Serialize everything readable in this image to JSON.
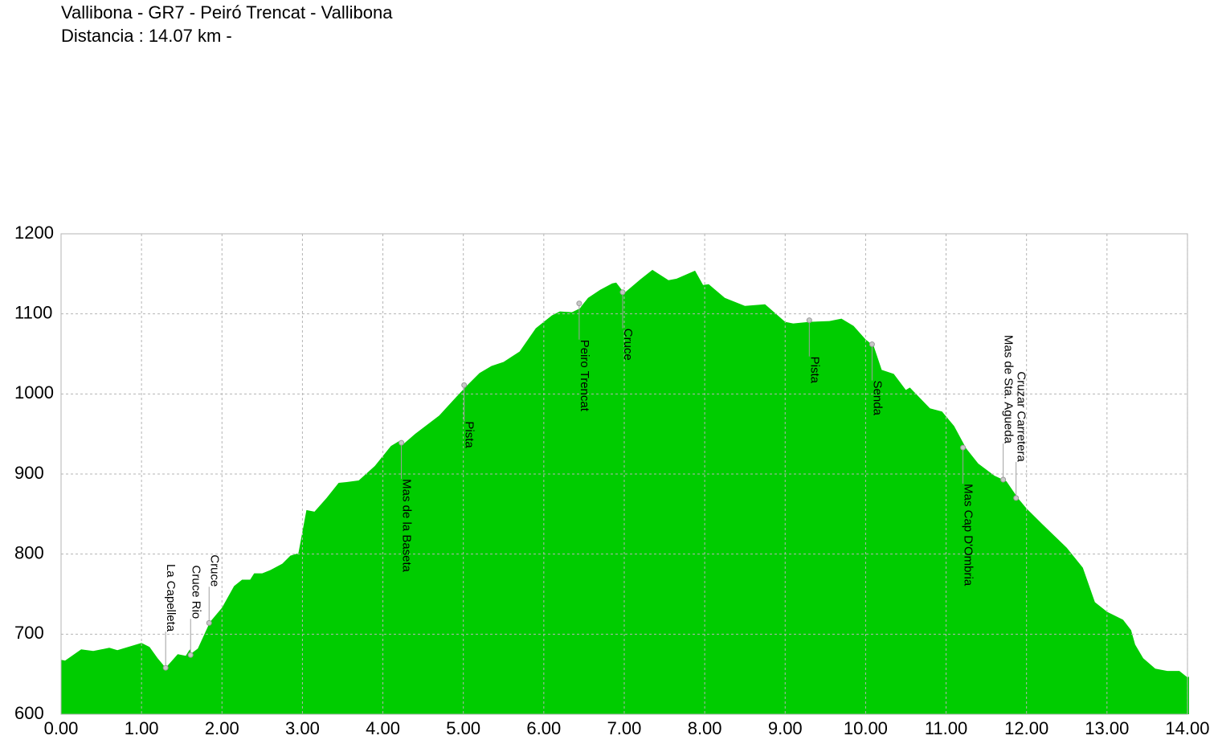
{
  "chart_data": {
    "type": "area",
    "title": "Vallibona - GR7 - Peiró Trencat - Vallibona",
    "subtitle": "Distancia : 14.07 km -",
    "color": "#00cc00",
    "grid": true,
    "x": [
      0.0,
      0.05,
      0.25,
      0.4,
      0.6,
      0.7,
      1.0,
      1.1,
      1.2,
      1.3,
      1.45,
      1.55,
      1.6,
      1.62,
      1.7,
      1.85,
      2.0,
      2.15,
      2.25,
      2.35,
      2.4,
      2.5,
      2.6,
      2.75,
      2.85,
      2.95,
      3.05,
      3.15,
      3.3,
      3.45,
      3.55,
      3.7,
      3.9,
      4.1,
      4.2,
      4.25,
      4.4,
      4.7,
      4.9,
      5.05,
      5.2,
      5.35,
      5.5,
      5.7,
      5.9,
      6.1,
      6.2,
      6.35,
      6.45,
      6.47,
      6.55,
      6.7,
      6.85,
      6.9,
      7.0,
      7.2,
      7.35,
      7.55,
      7.65,
      7.88,
      7.98,
      8.05,
      8.25,
      8.5,
      8.75,
      9.0,
      9.1,
      9.3,
      9.55,
      9.7,
      9.85,
      10.0,
      10.1,
      10.2,
      10.35,
      10.5,
      10.55,
      10.8,
      10.95,
      11.1,
      11.25,
      11.4,
      11.6,
      11.75,
      11.9,
      12.0,
      12.2,
      12.5,
      12.7,
      12.85,
      13.0,
      13.2,
      13.3,
      13.35,
      13.45,
      13.6,
      13.75,
      13.9,
      14.0,
      14.02
    ],
    "values": [
      668,
      667,
      681,
      679,
      683,
      680,
      689,
      684,
      670,
      658,
      675,
      673,
      681,
      676,
      682,
      715,
      733,
      760,
      768,
      768,
      776,
      776,
      780,
      788,
      798,
      801,
      855,
      853,
      870,
      889,
      890,
      892,
      910,
      935,
      941,
      937,
      950,
      973,
      995,
      1011,
      1026,
      1035,
      1040,
      1053,
      1082,
      1098,
      1103,
      1102,
      1107,
      1110,
      1120,
      1130,
      1138,
      1139,
      1126,
      1143,
      1155,
      1142,
      1144,
      1154,
      1136,
      1137,
      1120,
      1110,
      1112,
      1090,
      1088,
      1090,
      1091,
      1094,
      1085,
      1068,
      1060,
      1030,
      1025,
      1005,
      1008,
      982,
      978,
      960,
      932,
      913,
      898,
      891,
      869,
      857,
      837,
      808,
      783,
      740,
      728,
      718,
      705,
      687,
      670,
      657,
      654,
      654,
      646,
      647
    ],
    "xlim": [
      0,
      14.02
    ],
    "ylim": [
      600,
      1200
    ],
    "xticks": [
      {
        "value": 0,
        "label": "0.00"
      },
      {
        "value": 1,
        "label": "1.00"
      },
      {
        "value": 2,
        "label": "2.00"
      },
      {
        "value": 3,
        "label": "3.00"
      },
      {
        "value": 4,
        "label": "4.00"
      },
      {
        "value": 5,
        "label": "5.00"
      },
      {
        "value": 6,
        "label": "6.00"
      },
      {
        "value": 7,
        "label": "7.00"
      },
      {
        "value": 8,
        "label": "8.00"
      },
      {
        "value": 9,
        "label": "9.00"
      },
      {
        "value": 10,
        "label": "10.00"
      },
      {
        "value": 11,
        "label": "11.00"
      },
      {
        "value": 12,
        "label": "12.00"
      },
      {
        "value": 13,
        "label": "13.00"
      },
      {
        "value": 14,
        "label": "14.00"
      }
    ],
    "yticks": [
      600,
      700,
      800,
      900,
      1000,
      1100,
      1200
    ],
    "waypoints": [
      {
        "label": "La Capelleta",
        "x": 1.3,
        "y": 658,
        "position": "above"
      },
      {
        "label": "Cruce Rio",
        "x": 1.61,
        "y": 674,
        "position": "above"
      },
      {
        "label": "Cruce",
        "x": 1.84,
        "y": 714,
        "position": "above"
      },
      {
        "label": "Mas de la Baseta",
        "x": 4.23,
        "y": 939,
        "position": "below"
      },
      {
        "label": "Pista",
        "x": 5.01,
        "y": 1011,
        "position": "below"
      },
      {
        "label": "Peiro Trencat",
        "x": 6.44,
        "y": 1113,
        "position": "below"
      },
      {
        "label": "Cruce",
        "x": 6.98,
        "y": 1127,
        "position": "below"
      },
      {
        "label": "Pista",
        "x": 9.3,
        "y": 1092,
        "position": "below"
      },
      {
        "label": "Senda",
        "x": 10.08,
        "y": 1062,
        "position": "below"
      },
      {
        "label": "Mas Cap D'Ombria",
        "x": 11.21,
        "y": 933,
        "position": "below"
      },
      {
        "label": "Mas de Sta. Agueda",
        "x": 11.71,
        "y": 893,
        "position": "above"
      },
      {
        "label": "Cruzar Carretera",
        "x": 11.87,
        "y": 870,
        "position": "above"
      }
    ]
  }
}
